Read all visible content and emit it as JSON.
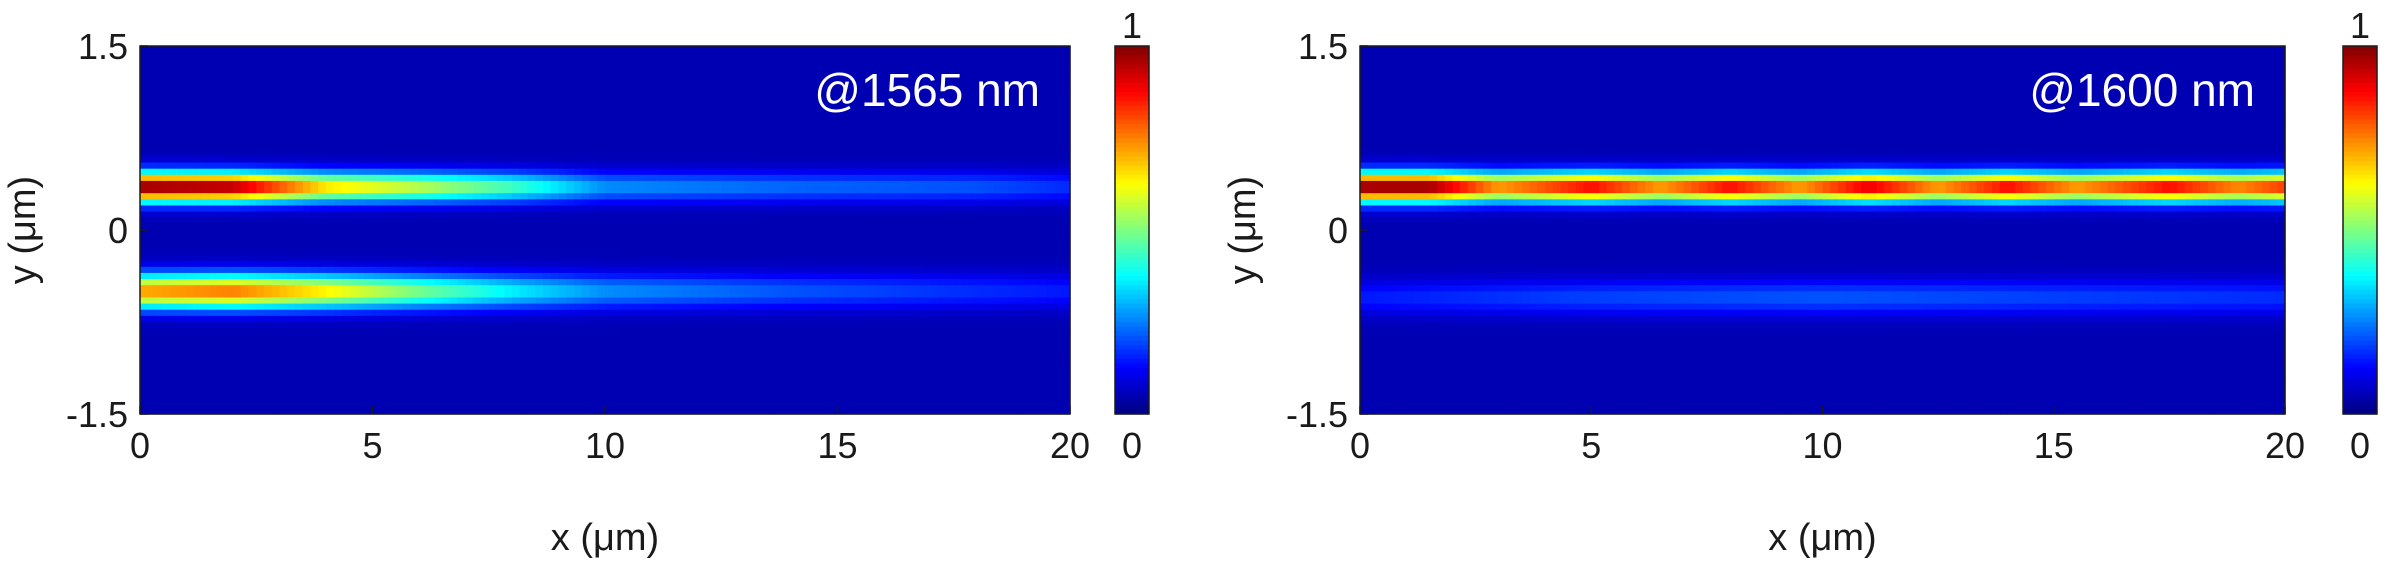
{
  "chart_data": [
    {
      "type": "heatmap",
      "annotation": "@1565 nm",
      "xlabel": "x (μm)",
      "ylabel": "y (μm)",
      "xlim": [
        0,
        20
      ],
      "ylim": [
        -1.5,
        1.5
      ],
      "xticks": [
        "0",
        "5",
        "10",
        "15",
        "20"
      ],
      "yticks": [
        "1.5",
        "0",
        "-1.5"
      ],
      "colorbar": {
        "min_label": "0",
        "max_label": "1",
        "range": [
          0,
          1
        ],
        "colormap": "jet"
      },
      "background_level": 0.05,
      "modes": [
        {
          "y_center": 0.35,
          "y_width": 0.12,
          "peaks": [
            [
              0,
              0.95
            ],
            [
              2,
              0.92
            ],
            [
              4,
              0.62
            ],
            [
              6,
              0.52
            ],
            [
              8,
              0.4
            ],
            [
              10,
              0.22
            ],
            [
              14,
              0.18
            ],
            [
              18,
              0.16
            ],
            [
              20,
              0.12
            ]
          ]
        },
        {
          "y_center": -0.5,
          "y_width": 0.14,
          "peaks": [
            [
              0,
              0.68
            ],
            [
              2,
              0.72
            ],
            [
              4,
              0.6
            ],
            [
              6,
              0.45
            ],
            [
              8,
              0.32
            ],
            [
              10,
              0.22
            ],
            [
              14,
              0.16
            ],
            [
              18,
              0.12
            ],
            [
              20,
              0.1
            ]
          ]
        }
      ]
    },
    {
      "type": "heatmap",
      "annotation": "@1600 nm",
      "xlabel": "x (μm)",
      "ylabel": "y (μm)",
      "xlim": [
        0,
        20
      ],
      "ylim": [
        -1.5,
        1.5
      ],
      "xticks": [
        "0",
        "5",
        "10",
        "15",
        "20"
      ],
      "yticks": [
        "1.5",
        "0",
        "-1.5"
      ],
      "colorbar": {
        "min_label": "0",
        "max_label": "1",
        "range": [
          0,
          1
        ],
        "colormap": "jet"
      },
      "background_level": 0.05,
      "modes": [
        {
          "y_center": 0.35,
          "y_width": 0.12,
          "peaks": [
            [
              0,
              0.95
            ],
            [
              1.5,
              0.95
            ],
            [
              3,
              0.7
            ],
            [
              5,
              0.85
            ],
            [
              6.5,
              0.7
            ],
            [
              8,
              0.85
            ],
            [
              9.5,
              0.7
            ],
            [
              11,
              0.88
            ],
            [
              12.5,
              0.7
            ],
            [
              14,
              0.85
            ],
            [
              15.5,
              0.7
            ],
            [
              17.5,
              0.85
            ],
            [
              19,
              0.72
            ],
            [
              20,
              0.8
            ]
          ]
        },
        {
          "y_center": -0.55,
          "y_width": 0.14,
          "peaks": [
            [
              0,
              0.1
            ],
            [
              5,
              0.14
            ],
            [
              10,
              0.16
            ],
            [
              15,
              0.14
            ],
            [
              20,
              0.12
            ]
          ]
        }
      ]
    }
  ]
}
